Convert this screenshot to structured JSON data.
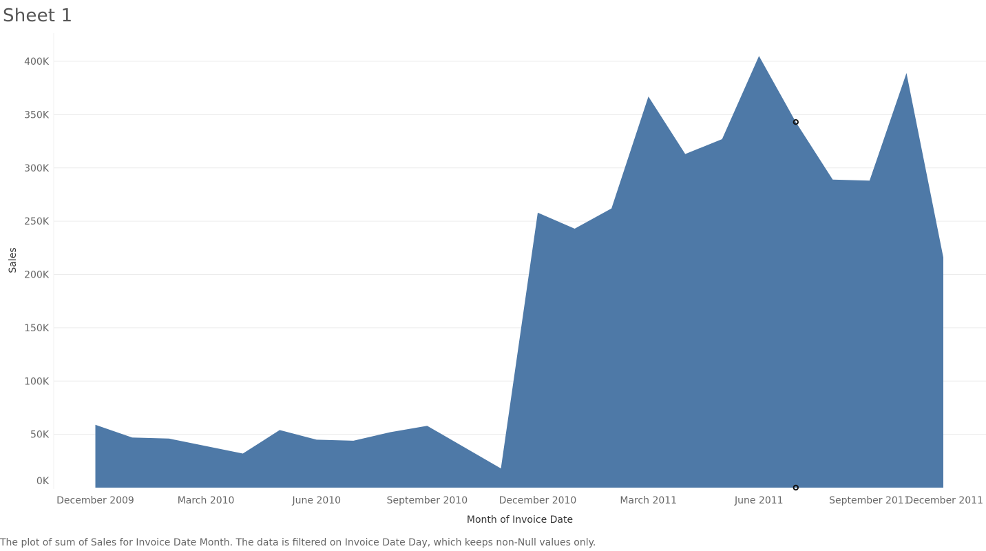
{
  "sheet": {
    "title": "Sheet 1",
    "caption": "The plot of sum of Sales for Invoice Date Month. The data is filtered on Invoice Date Day, which keeps non-Null values only."
  },
  "colors": {
    "area": "#4e79a7",
    "gridline": "#ececec",
    "axis_text": "#666666",
    "axis_title": "#333333"
  },
  "chart_data": {
    "type": "area",
    "title": "Sheet 1",
    "xlabel": "Month of Invoice Date",
    "ylabel": "Sales",
    "grid": true,
    "ylim": [
      0,
      420000
    ],
    "y_ticks": [
      {
        "value": 0,
        "label": "0K"
      },
      {
        "value": 50000,
        "label": "50K"
      },
      {
        "value": 100000,
        "label": "100K"
      },
      {
        "value": 150000,
        "label": "150K"
      },
      {
        "value": 200000,
        "label": "200K"
      },
      {
        "value": 250000,
        "label": "250K"
      },
      {
        "value": 300000,
        "label": "300K"
      },
      {
        "value": 350000,
        "label": "350K"
      },
      {
        "value": 400000,
        "label": "400K"
      }
    ],
    "x_tick_labels": [
      {
        "month": "2009-12",
        "label": "December 2009"
      },
      {
        "month": "2010-03",
        "label": "March 2010"
      },
      {
        "month": "2010-06",
        "label": "June 2010"
      },
      {
        "month": "2010-09",
        "label": "September 2010"
      },
      {
        "month": "2010-12",
        "label": "December 2010"
      },
      {
        "month": "2011-03",
        "label": "March 2011"
      },
      {
        "month": "2011-06",
        "label": "June 2011"
      },
      {
        "month": "2011-09",
        "label": "September 2011"
      },
      {
        "month": "2011-12",
        "label": "December 2011"
      }
    ],
    "points": [
      {
        "month": "2009-12",
        "value": 59000
      },
      {
        "month": "2010-01",
        "value": 47000
      },
      {
        "month": "2010-02",
        "value": 46000
      },
      {
        "month": "2010-04",
        "value": 32000
      },
      {
        "month": "2010-05",
        "value": 54000
      },
      {
        "month": "2010-06",
        "value": 45000
      },
      {
        "month": "2010-07",
        "value": 44000
      },
      {
        "month": "2010-08",
        "value": 52000
      },
      {
        "month": "2010-09",
        "value": 58000
      },
      {
        "month": "2010-11",
        "value": 18000
      },
      {
        "month": "2010-12",
        "value": 258000
      },
      {
        "month": "2011-01",
        "value": 243000
      },
      {
        "month": "2011-02",
        "value": 262000
      },
      {
        "month": "2011-03",
        "value": 367000
      },
      {
        "month": "2011-04",
        "value": 313000
      },
      {
        "month": "2011-05",
        "value": 327000
      },
      {
        "month": "2011-06",
        "value": 405000
      },
      {
        "month": "2011-07",
        "value": 343000
      },
      {
        "month": "2011-08",
        "value": 289000
      },
      {
        "month": "2011-09",
        "value": 288000
      },
      {
        "month": "2011-10",
        "value": 389000
      },
      {
        "month": "2011-11",
        "value": 216000
      }
    ],
    "highlighted_month": "2011-07"
  }
}
